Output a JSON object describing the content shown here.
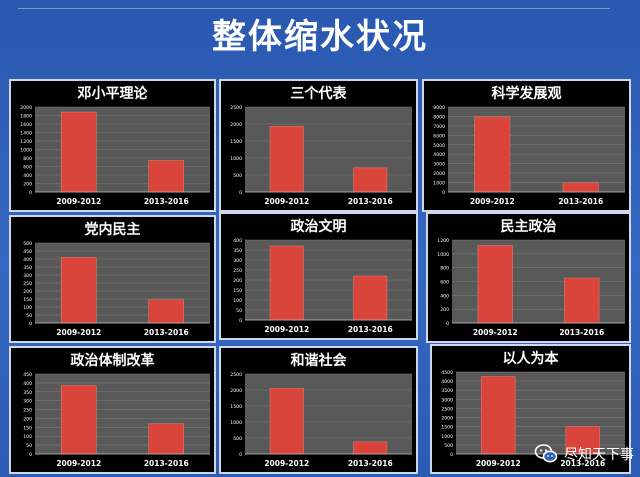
{
  "title": "整体缩水状况",
  "watermark": "尽知天下事",
  "colors": {
    "bar": "#d9453a",
    "plot_bg": "#595959",
    "grid": "#7a7a7a"
  },
  "chart_data": [
    {
      "type": "bar",
      "title": "邓小平理论",
      "categories": [
        "2009-2012",
        "2013-2016"
      ],
      "values": [
        1880,
        740
      ],
      "ylim": [
        0,
        2000
      ],
      "yticks": [
        0,
        200,
        400,
        600,
        800,
        1000,
        1200,
        1400,
        1600,
        1800,
        2000
      ]
    },
    {
      "type": "bar",
      "title": "三个代表",
      "categories": [
        "2009-2012",
        "2013-2016"
      ],
      "values": [
        1930,
        710
      ],
      "ylim": [
        0,
        2500
      ],
      "yticks": [
        0,
        500,
        1000,
        1500,
        2000,
        2500
      ]
    },
    {
      "type": "bar",
      "title": "科学发展观",
      "categories": [
        "2009-2012",
        "2013-2016"
      ],
      "values": [
        7950,
        980
      ],
      "ylim": [
        0,
        9000
      ],
      "yticks": [
        0,
        1000,
        2000,
        3000,
        4000,
        5000,
        6000,
        7000,
        8000,
        9000
      ]
    },
    {
      "type": "bar",
      "title": "党内民主",
      "categories": [
        "2009-2012",
        "2013-2016"
      ],
      "values": [
        410,
        145
      ],
      "ylim": [
        0,
        500
      ],
      "yticks": [
        0,
        50,
        100,
        150,
        200,
        250,
        300,
        350,
        400,
        450,
        500
      ]
    },
    {
      "type": "bar",
      "title": "政治文明",
      "categories": [
        "2009-2012",
        "2013-2016"
      ],
      "values": [
        370,
        220
      ],
      "ylim": [
        0,
        400
      ],
      "yticks": [
        0,
        50,
        100,
        150,
        200,
        250,
        300,
        350,
        400
      ]
    },
    {
      "type": "bar",
      "title": "民主政治",
      "categories": [
        "2009-2012",
        "2013-2016"
      ],
      "values": [
        1120,
        650
      ],
      "ylim": [
        0,
        1200
      ],
      "yticks": [
        0,
        200,
        400,
        600,
        800,
        1000,
        1200
      ]
    },
    {
      "type": "bar",
      "title": "政治体制改革",
      "categories": [
        "2009-2012",
        "2013-2016"
      ],
      "values": [
        385,
        170
      ],
      "ylim": [
        0,
        450
      ],
      "yticks": [
        0,
        50,
        100,
        150,
        200,
        250,
        300,
        350,
        400,
        450
      ]
    },
    {
      "type": "bar",
      "title": "和谐社会",
      "categories": [
        "2009-2012",
        "2013-2016"
      ],
      "values": [
        2050,
        380
      ],
      "ylim": [
        0,
        2500
      ],
      "yticks": [
        0,
        500,
        1000,
        1500,
        2000,
        2500
      ]
    },
    {
      "type": "bar",
      "title": "以人为本",
      "categories": [
        "2009-2012",
        "2013-2016"
      ],
      "values": [
        4250,
        1500
      ],
      "ylim": [
        0,
        4500
      ],
      "yticks": [
        0,
        500,
        1000,
        1500,
        2000,
        2500,
        3000,
        3500,
        4000,
        4500
      ]
    }
  ]
}
